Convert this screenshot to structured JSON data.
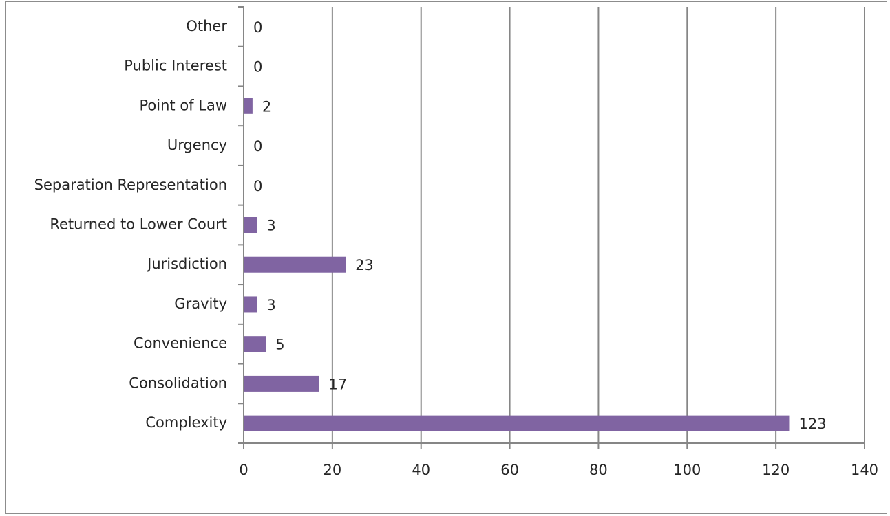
{
  "chart_data": {
    "type": "bar",
    "orientation": "horizontal",
    "categories": [
      "Complexity",
      "Consolidation",
      "Convenience",
      "Gravity",
      "Jurisdiction",
      "Returned to Lower Court",
      "Separation Representation",
      "Urgency",
      "Point of Law",
      "Public Interest",
      "Other"
    ],
    "values": [
      123,
      17,
      5,
      3,
      23,
      3,
      0,
      0,
      2,
      0,
      0
    ],
    "data_labels": [
      "123",
      "17",
      "5",
      "3",
      "23",
      "3",
      "0",
      "0",
      "2",
      "0",
      "0"
    ],
    "xlim": [
      0,
      140
    ],
    "xticks": [
      0,
      20,
      40,
      60,
      80,
      100,
      120,
      140
    ],
    "xtick_labels": [
      "0",
      "20",
      "40",
      "60",
      "80",
      "100",
      "120",
      "140"
    ],
    "title": "",
    "xlabel": "",
    "ylabel": "",
    "grid": "vertical",
    "legend": "none",
    "bar_color": "#8064a2",
    "gridline_color": "#868686"
  }
}
